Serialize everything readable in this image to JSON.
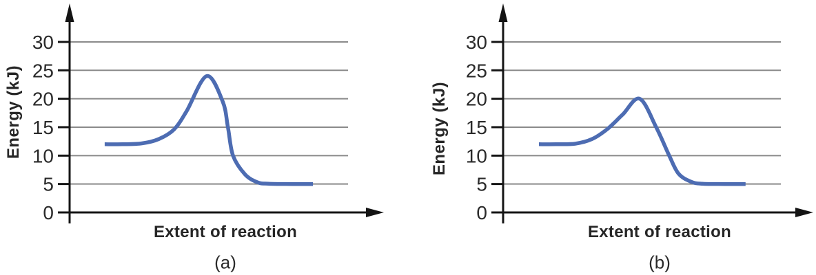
{
  "colors": {
    "curve": "#4d6cb2",
    "gridline": "#8a8a8a",
    "axis": "#141414",
    "text": "#2a2a2a",
    "background": "#ffffff"
  },
  "chart_data": [
    {
      "type": "line",
      "caption": "(a)",
      "xlabel": "Extent of reaction",
      "ylabel": "Energy (kJ)",
      "yticks": [
        0,
        5,
        10,
        15,
        20,
        25,
        30
      ],
      "ylim": [
        0,
        33
      ],
      "grid": true,
      "legend": "none",
      "series": [
        {
          "name": "reaction energy profile (a)",
          "points_x_fraction": [
            0.126,
            0.19,
            0.26,
            0.32,
            0.375,
            0.42,
            0.4925,
            0.55,
            0.5685,
            0.587,
            0.63,
            0.675,
            0.715,
            0.8,
            0.874
          ],
          "points_energy_kJ": [
            12,
            12,
            12.15,
            12.9,
            14.6,
            17.8,
            24,
            19.5,
            15,
            10,
            6.7,
            5.3,
            5.05,
            5,
            5
          ]
        }
      ],
      "key_values": {
        "reactant_energy_kJ": 12,
        "peak_energy_kJ": 24,
        "product_energy_kJ": 5
      }
    },
    {
      "type": "line",
      "caption": "(b)",
      "xlabel": "Extent of reaction",
      "ylabel": "Energy (kJ)",
      "yticks": [
        0,
        5,
        10,
        15,
        20,
        25,
        30
      ],
      "ylim": [
        0,
        33
      ],
      "grid": true,
      "legend": "none",
      "series": [
        {
          "name": "reaction energy profile (b)",
          "points_x_fraction": [
            0.129,
            0.19,
            0.26,
            0.32,
            0.376,
            0.43,
            0.4914,
            0.551,
            0.598,
            0.632,
            0.677,
            0.717,
            0.8,
            0.873
          ],
          "points_energy_kJ": [
            12,
            12,
            12.1,
            12.9,
            14.7,
            17.2,
            20,
            15,
            10,
            6.8,
            5.4,
            5.05,
            5,
            5
          ]
        }
      ],
      "key_values": {
        "reactant_energy_kJ": 12,
        "peak_energy_kJ": 20,
        "product_energy_kJ": 5
      }
    }
  ]
}
